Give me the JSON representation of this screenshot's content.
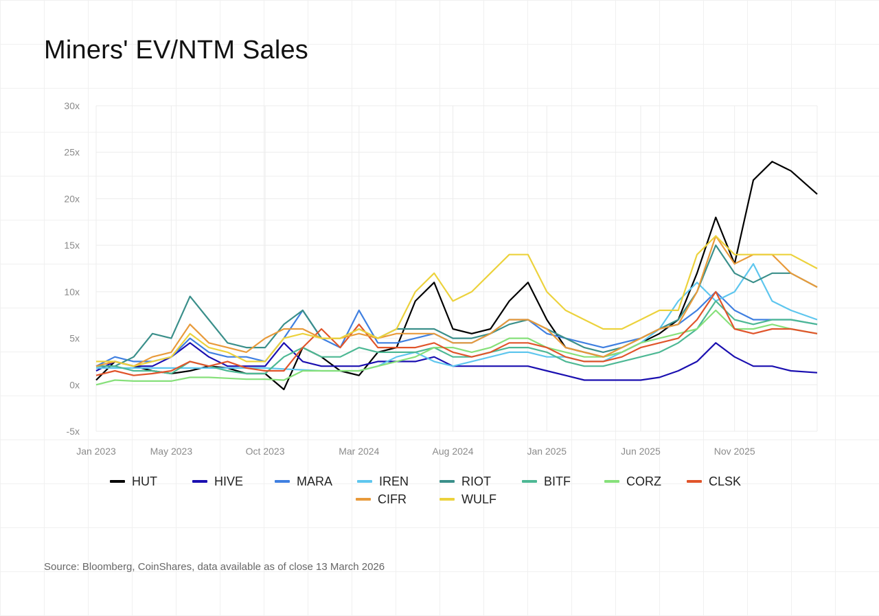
{
  "title": "Miners' EV/NTM Sales",
  "source": "Source: Bloomberg, CoinShares, data available as of close 13 March 2026",
  "chart_data": {
    "type": "line",
    "title": "Miners' EV/NTM Sales",
    "xlabel": "",
    "ylabel": "",
    "ylim": [
      -5,
      30
    ],
    "yticks": [
      -5,
      0,
      5,
      10,
      15,
      20,
      25,
      30
    ],
    "ytick_labels": [
      "-5x",
      "0x",
      "5x",
      "10x",
      "15x",
      "20x",
      "25x",
      "30x"
    ],
    "xlim": [
      "2023-01",
      "2026-03-13"
    ],
    "xtick_labels": [
      "Jan 2023",
      "May 2023",
      "Oct 2023",
      "Mar 2024",
      "Aug 2024",
      "Jan 2025",
      "Jun 2025",
      "Nov 2025"
    ],
    "xtick_months": [
      0,
      4,
      9,
      14,
      19,
      24,
      29,
      34
    ],
    "grid": true,
    "legend_placement": "bottom",
    "x": [
      "2023-01",
      "2023-02",
      "2023-03",
      "2023-04",
      "2023-05",
      "2023-06",
      "2023-07",
      "2023-08",
      "2023-09",
      "2023-10",
      "2023-11",
      "2023-12",
      "2024-01",
      "2024-02",
      "2024-03",
      "2024-04",
      "2024-05",
      "2024-06",
      "2024-07",
      "2024-08",
      "2024-09",
      "2024-10",
      "2024-11",
      "2024-12",
      "2025-01",
      "2025-02",
      "2025-03",
      "2025-04",
      "2025-05",
      "2025-06",
      "2025-07",
      "2025-08",
      "2025-09",
      "2025-10",
      "2025-11",
      "2025-12",
      "2026-01",
      "2026-02",
      "2026-03"
    ],
    "series": [
      {
        "name": "HUT",
        "color": "#000000",
        "values": [
          0.5,
          2.5,
          2,
          1.5,
          1.2,
          1.5,
          2,
          1.8,
          1.2,
          1.2,
          -0.5,
          4,
          3,
          1.5,
          1,
          3.5,
          4,
          9,
          11,
          6,
          5.5,
          6,
          9,
          11,
          7,
          4,
          3.5,
          3,
          3.5,
          4.5,
          5.5,
          7,
          12,
          18,
          13,
          22,
          24,
          23,
          20.5
        ]
      },
      {
        "name": "HIVE",
        "color": "#1a0fb0",
        "values": [
          1.5,
          2.5,
          2,
          2,
          3,
          4.5,
          3,
          2,
          2,
          2,
          4.5,
          2.5,
          2,
          2,
          2,
          2.5,
          2.5,
          2.5,
          3,
          2,
          2,
          2,
          2,
          2,
          1.5,
          1,
          0.5,
          0.5,
          0.5,
          0.5,
          0.8,
          1.5,
          2.5,
          4.5,
          3,
          2,
          2,
          1.5,
          1.3
        ]
      },
      {
        "name": "MARA",
        "color": "#3f7fe0",
        "values": [
          2,
          3,
          2.5,
          2.5,
          3,
          5,
          3.5,
          3,
          3,
          2.5,
          5,
          8,
          5,
          4,
          8,
          4.5,
          4.5,
          5,
          5.5,
          4.5,
          4.5,
          5.5,
          7,
          7,
          5.5,
          5,
          4.5,
          4,
          4.5,
          5,
          6,
          6.5,
          8,
          10,
          8,
          7,
          7,
          7,
          6.5
        ]
      },
      {
        "name": "IREN",
        "color": "#5ec6ee",
        "values": [
          1.8,
          1.8,
          1.8,
          1.8,
          1.8,
          1.8,
          1.8,
          1.8,
          1.8,
          1.8,
          1.7,
          1.6,
          1.5,
          1.5,
          1.5,
          2,
          3,
          3.5,
          2.5,
          2,
          2.5,
          3,
          3.5,
          3.5,
          3,
          3,
          2.5,
          2.5,
          3.5,
          4.5,
          6,
          9,
          11,
          9,
          10,
          13,
          9,
          8,
          7
        ]
      },
      {
        "name": "RIOT",
        "color": "#3a8f8a",
        "values": [
          2,
          2,
          3,
          5.5,
          5,
          9.5,
          7,
          4.5,
          4,
          4,
          6.5,
          8,
          5,
          5,
          6,
          5,
          6,
          6,
          6,
          5,
          5,
          5.5,
          6.5,
          7,
          6,
          5,
          4,
          3.5,
          4,
          5,
          6,
          7,
          10,
          15,
          12,
          11,
          12,
          12,
          10.5
        ]
      },
      {
        "name": "BITF",
        "color": "#4db894",
        "values": [
          2,
          2,
          1.5,
          1.5,
          1.2,
          2.5,
          2,
          1.5,
          1.2,
          1.2,
          3,
          4,
          3,
          3,
          4,
          3.5,
          3.5,
          3.5,
          4,
          3,
          3,
          3.5,
          4,
          4,
          3.5,
          2.5,
          2,
          2,
          2.5,
          3,
          3.5,
          4.5,
          6,
          9,
          7,
          6.5,
          7,
          7,
          6.5
        ]
      },
      {
        "name": "CORZ",
        "color": "#86e07a",
        "values": [
          0,
          0.5,
          0.4,
          0.4,
          0.4,
          0.8,
          0.8,
          0.7,
          0.6,
          0.6,
          0.5,
          1.5,
          1.5,
          1.5,
          1.5,
          2,
          2.5,
          3,
          4,
          4,
          3.5,
          4,
          5,
          5,
          4,
          3.5,
          3,
          3,
          3.5,
          4.5,
          5,
          5.5,
          6,
          8,
          6,
          6,
          6.5,
          6,
          5.5
        ]
      },
      {
        "name": "CLSK",
        "color": "#e0542a",
        "values": [
          1,
          1.5,
          1,
          1.2,
          1.5,
          2.5,
          2,
          2.5,
          1.8,
          1.5,
          1.5,
          4,
          6,
          4,
          6.5,
          4,
          4,
          4,
          4.5,
          3.5,
          3,
          3.5,
          4.5,
          4.5,
          4,
          3,
          2.5,
          2.5,
          3,
          4,
          4.5,
          5,
          7,
          10,
          6,
          5.5,
          6,
          6,
          5.5
        ]
      },
      {
        "name": "CIFR",
        "color": "#e89a3a",
        "values": [
          2,
          2.5,
          2,
          3,
          3.5,
          6.5,
          4.5,
          4,
          3.5,
          5,
          6,
          6,
          5,
          5,
          5.5,
          5,
          5.5,
          5.5,
          5.5,
          4.5,
          4.5,
          5.5,
          7,
          7,
          6,
          4,
          3.5,
          3,
          4,
          5,
          6,
          6.5,
          10,
          16,
          13,
          14,
          14,
          12,
          10.5
        ]
      },
      {
        "name": "WULF",
        "color": "#ecd23c",
        "values": [
          2.5,
          2.5,
          2,
          2.5,
          3,
          5.5,
          4,
          3.5,
          2.5,
          2.5,
          5,
          5.5,
          5,
          5,
          6,
          5,
          6,
          10,
          12,
          9,
          10,
          12,
          14,
          14,
          10,
          8,
          7,
          6,
          6,
          7,
          8,
          8,
          14,
          16,
          14,
          14,
          14,
          14,
          12.5
        ]
      }
    ]
  }
}
